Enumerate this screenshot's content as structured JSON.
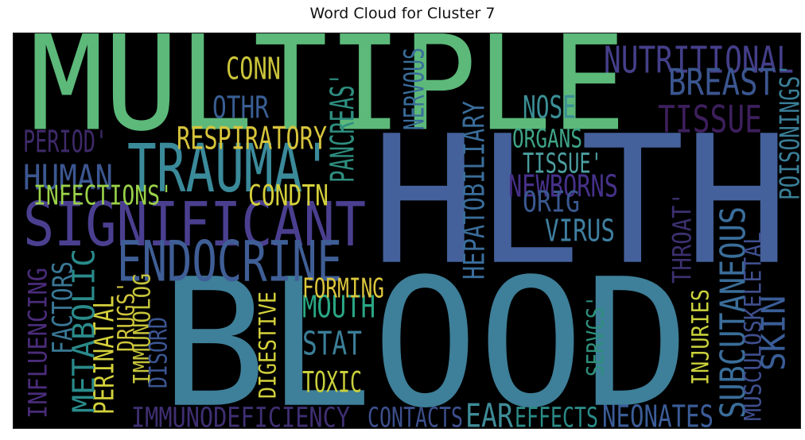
{
  "chart_data": {
    "type": "wordcloud",
    "title": "Word Cloud for Cluster 7",
    "background_color": "#000000",
    "colormap": "viridis",
    "words": [
      {
        "text": "MULTIPLE",
        "color": "#5cb97a"
      },
      {
        "text": "HLTH",
        "color": "#45619c"
      },
      {
        "text": "BLOOD",
        "color": "#3e7f99"
      },
      {
        "text": "SIGNIFICANT",
        "color": "#4a3f8f"
      },
      {
        "text": "TRAUMA'",
        "color": "#3a8a9a"
      },
      {
        "text": "ENDOCRINE",
        "color": "#3f5e96"
      },
      {
        "text": "NUTRITIONAL",
        "color": "#443f8a"
      },
      {
        "text": "BREAST",
        "color": "#3b5690"
      },
      {
        "text": "TISSUE",
        "color": "#3d1f5c"
      },
      {
        "text": "HUMAN",
        "color": "#3c5791"
      },
      {
        "text": "RESPIRATORY",
        "color": "#d7c43c"
      },
      {
        "text": "CONN",
        "color": "#c9c43a"
      },
      {
        "text": "OTHR",
        "color": "#3a5e93"
      },
      {
        "text": "PERIOD'",
        "color": "#3e2a6a"
      },
      {
        "text": "INFECTIONS'",
        "color": "#9ad249"
      },
      {
        "text": "CONDTN",
        "color": "#d5d13b"
      },
      {
        "text": "PANCREAS'",
        "color": "#2e8e80"
      },
      {
        "text": "NERVOUS",
        "color": "#3a6d9a"
      },
      {
        "text": "HEPATOBILIARY",
        "color": "#3a6d9a"
      },
      {
        "text": "NOSE",
        "color": "#3b8f96"
      },
      {
        "text": "ORGANS",
        "color": "#3fa488"
      },
      {
        "text": "TISSUE'",
        "color": "#4c9ea0"
      },
      {
        "text": "NEWBORNS",
        "color": "#46318a"
      },
      {
        "text": "ORIG",
        "color": "#3a5890"
      },
      {
        "text": "VIRUS",
        "color": "#3f7fa0"
      },
      {
        "text": "THROAT'",
        "color": "#3d3070"
      },
      {
        "text": "POISONINGS'",
        "color": "#3a7e97"
      },
      {
        "text": "SUBCUTANEOUS",
        "color": "#3a6d99"
      },
      {
        "text": "MUSCULOSKELETAL",
        "color": "#3f4f8f"
      },
      {
        "text": "SKIN",
        "color": "#3a5d97"
      },
      {
        "text": "INJURIES",
        "color": "#cbd23c"
      },
      {
        "text": "SERVCS'",
        "color": "#2e8f7c"
      },
      {
        "text": "NEONATES",
        "color": "#3b5c97"
      },
      {
        "text": "EFFECTS",
        "color": "#2a8a86"
      },
      {
        "text": "EAR",
        "color": "#3f8c98"
      },
      {
        "text": "CONTACTS",
        "color": "#3c4f8d"
      },
      {
        "text": "IMMUNODEFICIENCY",
        "color": "#3f2f72"
      },
      {
        "text": "TOXIC",
        "color": "#c8cf3c"
      },
      {
        "text": "STAT",
        "color": "#3b7f99"
      },
      {
        "text": "MOUTH",
        "color": "#2aa784"
      },
      {
        "text": "FORMING",
        "color": "#dcc63c"
      },
      {
        "text": "DIGESTIVE",
        "color": "#d3d03c"
      },
      {
        "text": "IMMUNOLOG",
        "color": "#c5c43a"
      },
      {
        "text": "DISORD",
        "color": "#3b5692"
      },
      {
        "text": "DRUGS'",
        "color": "#d0c63c"
      },
      {
        "text": "PERINATAL",
        "color": "#d4d13b"
      },
      {
        "text": "METABOLIC",
        "color": "#2a8a8a"
      },
      {
        "text": "FACTORS",
        "color": "#3a7896"
      },
      {
        "text": "INFLUENCING",
        "color": "#4a2c7a"
      }
    ]
  }
}
